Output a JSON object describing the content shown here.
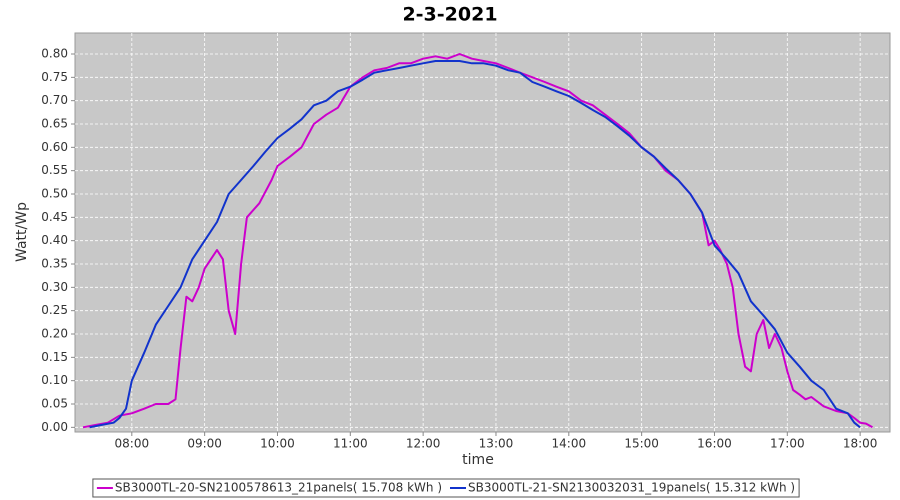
{
  "chart_data": {
    "type": "line",
    "title": "2-3-2021",
    "x_label": "time",
    "y_label": "Watt/Wp",
    "xlim": [
      7.22,
      18.41
    ],
    "ylim": [
      -0.01,
      0.845
    ],
    "xticks": [
      {
        "value": 8,
        "label": "08:00"
      },
      {
        "value": 9,
        "label": "09:00"
      },
      {
        "value": 10,
        "label": "10:00"
      },
      {
        "value": 11,
        "label": "11:00"
      },
      {
        "value": 12,
        "label": "12:00"
      },
      {
        "value": 13,
        "label": "13:00"
      },
      {
        "value": 14,
        "label": "14:00"
      },
      {
        "value": 15,
        "label": "15:00"
      },
      {
        "value": 16,
        "label": "16:00"
      },
      {
        "value": 17,
        "label": "17:00"
      },
      {
        "value": 18,
        "label": "18:00"
      }
    ],
    "yticks": [
      {
        "value": 0,
        "label": "0.00"
      },
      0.05,
      {
        "value": 0.1,
        "label": "0.10"
      },
      0.15,
      {
        "value": 0.2,
        "label": "0.20"
      },
      0.25,
      {
        "value": 0.3,
        "label": "0.30"
      },
      0.35,
      {
        "value": 0.4,
        "label": "0.40"
      },
      0.45,
      {
        "value": 0.5,
        "label": "0.50"
      },
      0.55,
      {
        "value": 0.6,
        "label": "0.60"
      },
      0.65,
      {
        "value": 0.7,
        "label": "0.70"
      },
      0.75,
      {
        "value": 0.8,
        "label": "0.80"
      }
    ],
    "grid": true,
    "legend": "bottom",
    "series": [
      {
        "name": "SB3000TL-20-SN2100578613_21panels( 15.708 kWh )",
        "color": "#cc00cc",
        "x": [
          7.33,
          7.5,
          7.67,
          7.83,
          8.0,
          8.17,
          8.33,
          8.5,
          8.6,
          8.67,
          8.75,
          8.83,
          8.92,
          9.0,
          9.17,
          9.25,
          9.33,
          9.42,
          9.5,
          9.58,
          9.75,
          9.92,
          10.0,
          10.17,
          10.33,
          10.5,
          10.67,
          10.83,
          11.0,
          11.17,
          11.33,
          11.5,
          11.67,
          11.83,
          12.0,
          12.17,
          12.33,
          12.5,
          12.67,
          12.83,
          13.0,
          13.17,
          13.33,
          13.5,
          13.67,
          13.83,
          14.0,
          14.17,
          14.33,
          14.5,
          14.67,
          14.83,
          15.0,
          15.17,
          15.33,
          15.5,
          15.67,
          15.83,
          15.92,
          16.0,
          16.08,
          16.17,
          16.25,
          16.33,
          16.42,
          16.5,
          16.58,
          16.67,
          16.75,
          16.83,
          16.92,
          17.0,
          17.08,
          17.17,
          17.25,
          17.33,
          17.5,
          17.67,
          17.83,
          17.92,
          18.0,
          18.08,
          18.17
        ],
        "values": [
          0,
          0.005,
          0.01,
          0.025,
          0.03,
          0.04,
          0.05,
          0.05,
          0.06,
          0.17,
          0.28,
          0.27,
          0.3,
          0.34,
          0.38,
          0.36,
          0.25,
          0.2,
          0.35,
          0.45,
          0.48,
          0.53,
          0.56,
          0.58,
          0.6,
          0.65,
          0.67,
          0.685,
          0.73,
          0.75,
          0.765,
          0.77,
          0.78,
          0.78,
          0.79,
          0.795,
          0.79,
          0.8,
          0.79,
          0.785,
          0.78,
          0.77,
          0.76,
          0.75,
          0.74,
          0.73,
          0.72,
          0.7,
          0.69,
          0.67,
          0.65,
          0.63,
          0.6,
          0.58,
          0.55,
          0.53,
          0.5,
          0.46,
          0.39,
          0.4,
          0.38,
          0.35,
          0.3,
          0.2,
          0.13,
          0.12,
          0.2,
          0.23,
          0.17,
          0.2,
          0.17,
          0.12,
          0.08,
          0.07,
          0.06,
          0.065,
          0.045,
          0.035,
          0.03,
          0.02,
          0.01,
          0.008,
          0
        ]
      },
      {
        "name": "SB3000TL-21-SN2130032031_19panels( 15.312 kWh )",
        "color": "#1133cc",
        "x": [
          7.42,
          7.58,
          7.75,
          7.83,
          7.92,
          8.0,
          8.17,
          8.33,
          8.5,
          8.67,
          8.83,
          9.0,
          9.17,
          9.33,
          9.5,
          9.67,
          9.83,
          10.0,
          10.17,
          10.33,
          10.5,
          10.67,
          10.83,
          11.0,
          11.17,
          11.33,
          11.5,
          11.67,
          11.83,
          12.0,
          12.17,
          12.33,
          12.5,
          12.67,
          12.83,
          13.0,
          13.17,
          13.33,
          13.5,
          13.67,
          13.83,
          14.0,
          14.17,
          14.33,
          14.5,
          14.67,
          14.83,
          15.0,
          15.17,
          15.33,
          15.5,
          15.67,
          15.83,
          16.0,
          16.17,
          16.33,
          16.5,
          16.67,
          16.83,
          17.0,
          17.17,
          17.33,
          17.5,
          17.67,
          17.83,
          17.92,
          18.0
        ],
        "values": [
          0,
          0.005,
          0.01,
          0.02,
          0.04,
          0.1,
          0.16,
          0.22,
          0.26,
          0.3,
          0.36,
          0.4,
          0.44,
          0.5,
          0.53,
          0.56,
          0.59,
          0.62,
          0.64,
          0.66,
          0.69,
          0.7,
          0.72,
          0.73,
          0.745,
          0.76,
          0.765,
          0.77,
          0.775,
          0.78,
          0.785,
          0.785,
          0.785,
          0.78,
          0.78,
          0.775,
          0.765,
          0.76,
          0.74,
          0.73,
          0.72,
          0.71,
          0.695,
          0.68,
          0.665,
          0.645,
          0.625,
          0.6,
          0.58,
          0.555,
          0.53,
          0.5,
          0.46,
          0.39,
          0.36,
          0.33,
          0.27,
          0.24,
          0.21,
          0.16,
          0.13,
          0.1,
          0.08,
          0.04,
          0.03,
          0.01,
          0
        ]
      }
    ]
  }
}
